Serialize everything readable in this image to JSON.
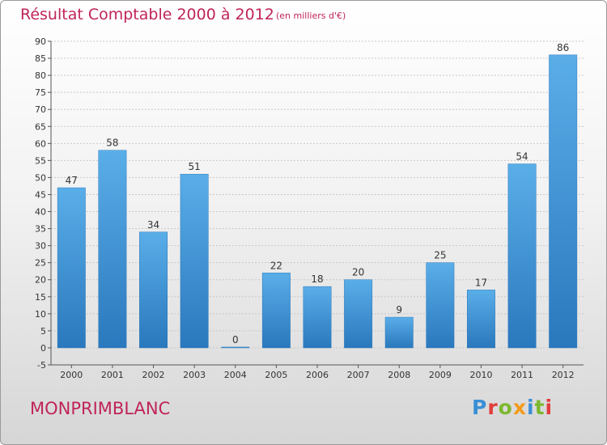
{
  "header": {
    "title": "Résultat Comptable 2000 à 2012",
    "subtitle": "(en milliers d'€)"
  },
  "footer": {
    "commune": "MONPRIMBLANC",
    "brand": {
      "letters": [
        "P",
        "r",
        "o",
        "x",
        "i",
        "t",
        "i"
      ],
      "colors": [
        "#3a8fd6",
        "#e23c3c",
        "#7cb82f",
        "#f39a1a",
        "#3a8fd6",
        "#7cb82f",
        "#e23c3c"
      ]
    }
  },
  "chart_data": {
    "type": "bar",
    "categories": [
      "2000",
      "2001",
      "2002",
      "2003",
      "2004",
      "2005",
      "2006",
      "2007",
      "2008",
      "2009",
      "2010",
      "2011",
      "2012"
    ],
    "values": [
      47,
      58,
      34,
      51,
      0,
      22,
      18,
      20,
      9,
      25,
      17,
      54,
      86
    ],
    "data_labels": [
      "47",
      "58",
      "34",
      "51",
      "0",
      "22",
      "18",
      "20",
      "9",
      "25",
      "17",
      "54",
      "86"
    ],
    "title": "Résultat Comptable 2000 à 2012",
    "subtitle": "(en milliers d'€)",
    "ylim": [
      -5,
      90
    ],
    "yticks": [
      -5,
      0,
      5,
      10,
      15,
      20,
      25,
      30,
      35,
      40,
      45,
      50,
      55,
      60,
      65,
      70,
      75,
      80,
      85,
      90
    ],
    "grid": true,
    "bar_color_top": "#5aaee8",
    "bar_color_bottom": "#2a78bd"
  }
}
